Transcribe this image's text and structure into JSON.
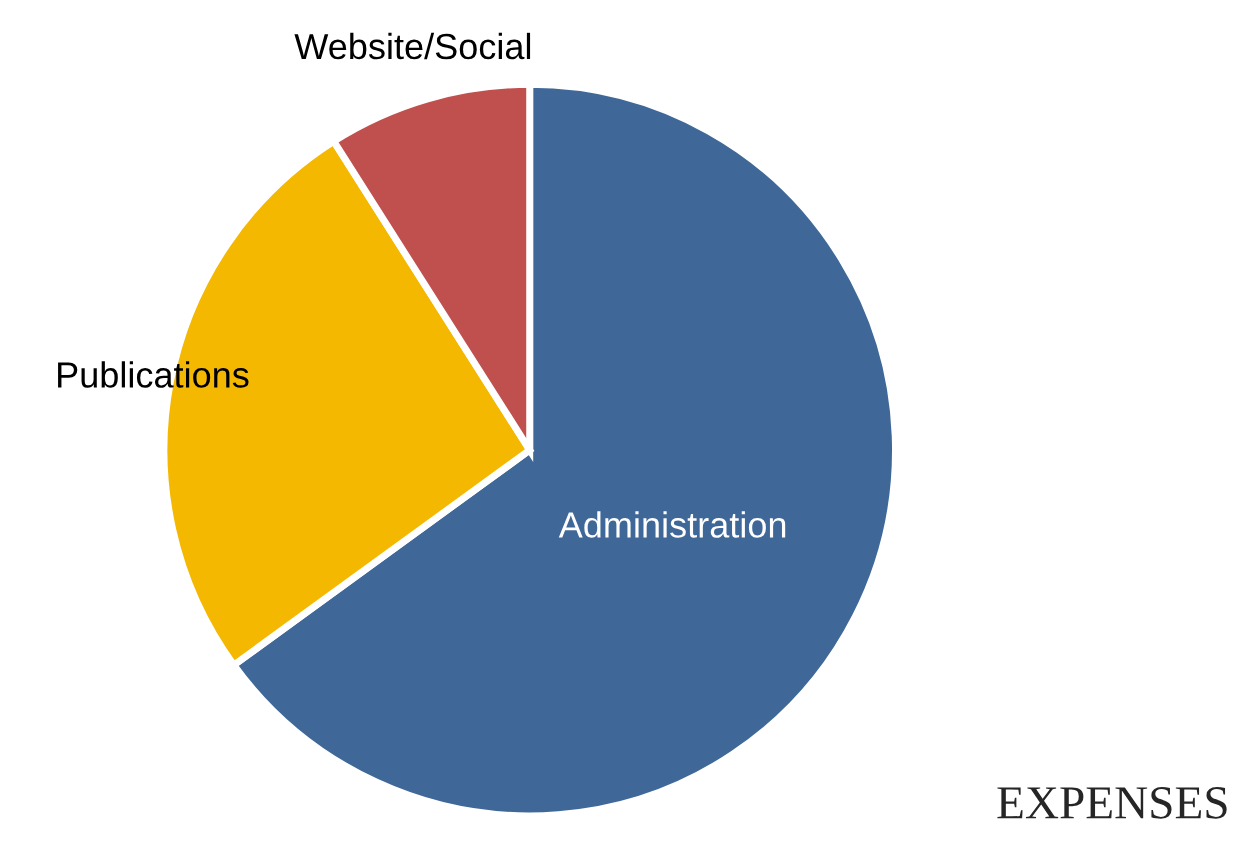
{
  "chart_data": {
    "type": "pie",
    "title": "EXPENSES",
    "categories": [
      "Administration",
      "Publications",
      "Website/Social"
    ],
    "values": [
      65,
      26,
      9
    ],
    "colors": [
      "#3f6899",
      "#f5b800",
      "#c0504d"
    ]
  }
}
